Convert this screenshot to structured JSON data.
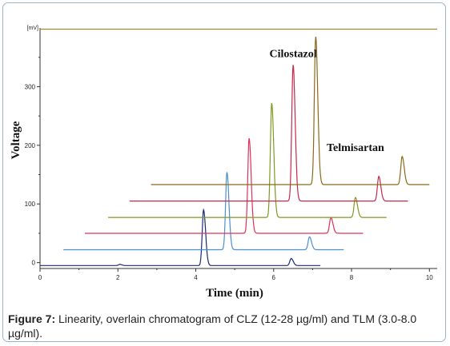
{
  "chart_data": {
    "type": "line",
    "ylabel": "Voltage",
    "xlabel": "Time (min)",
    "y_unit": "[mV]",
    "x_ticks": [
      "0",
      "2",
      "4",
      "6",
      "8",
      "10"
    ],
    "y_ticks": [
      "0",
      "100",
      "200",
      "300"
    ],
    "xlim": [
      0,
      10.2
    ],
    "ylim": [
      -10,
      400
    ],
    "grid": false,
    "annotations": [
      {
        "label": "Cilostazol",
        "x": 6.5,
        "y": 350
      },
      {
        "label": "Telmisartan",
        "x": 8.1,
        "y": 190
      }
    ],
    "series": [
      {
        "color": "#1a2a7a",
        "offset_x": 0.0,
        "baseline": -5,
        "start": 0.0,
        "end": 7.2,
        "peaks": [
          [
            2.05,
            2
          ],
          [
            4.2,
            95
          ],
          [
            6.45,
            12
          ]
        ]
      },
      {
        "color": "#4a90d0",
        "offset_x": 0.6,
        "baseline": 22,
        "start": 0.6,
        "end": 7.8,
        "peaks": [
          [
            4.8,
            132
          ],
          [
            6.92,
            22
          ]
        ]
      },
      {
        "color": "#e0305a",
        "offset_x": 1.15,
        "baseline": 50,
        "start": 1.15,
        "end": 8.3,
        "peaks": [
          [
            5.37,
            162
          ],
          [
            7.47,
            27
          ]
        ]
      },
      {
        "color": "#7c9a20",
        "offset_x": 1.75,
        "baseline": 77,
        "start": 1.75,
        "end": 8.9,
        "peaks": [
          [
            5.95,
            195
          ],
          [
            8.1,
            34
          ]
        ]
      },
      {
        "color": "#c8284a",
        "offset_x": 2.3,
        "baseline": 105,
        "start": 2.3,
        "end": 9.45,
        "peaks": [
          [
            6.5,
            232
          ],
          [
            8.7,
            42
          ]
        ]
      },
      {
        "color": "#8a6a18",
        "offset_x": 2.85,
        "baseline": 133,
        "start": 2.85,
        "end": 10.0,
        "peaks": [
          [
            7.08,
            252
          ],
          [
            9.3,
            48
          ]
        ]
      },
      {
        "color": "#a08a3a",
        "offset_x": 0.0,
        "baseline": 398,
        "start": 0.0,
        "end": 10.2,
        "peaks": []
      }
    ]
  },
  "caption": {
    "label": "Figure 7:",
    "text": " Linearity, overlain chromatogram of CLZ (12-28 µg/ml) and TLM (3.0-8.0 µg/ml)."
  }
}
